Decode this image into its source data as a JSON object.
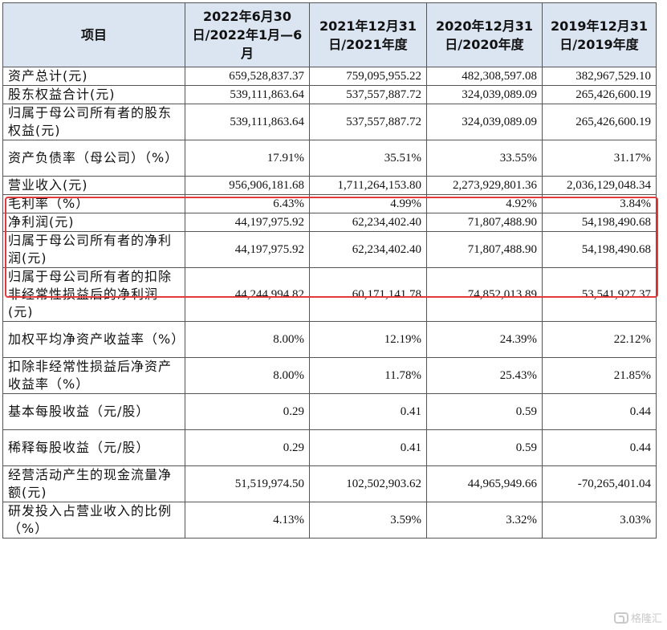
{
  "table": {
    "headers": [
      "项目",
      "2022年6月30日/2022年1月—6月",
      "2021年12月31日/2021年度",
      "2020年12月31日/2020年度",
      "2019年12月31日/2019年度"
    ],
    "rows": [
      {
        "label": "资产总计(元)",
        "values": [
          "659,528,837.37",
          "759,095,955.22",
          "482,308,597.08",
          "382,967,529.10"
        ]
      },
      {
        "label": "股东权益合计(元)",
        "values": [
          "539,111,863.64",
          "537,557,887.72",
          "324,039,089.09",
          "265,426,600.19"
        ]
      },
      {
        "label": "归属于母公司所有者的股东权益(元)",
        "values": [
          "539,111,863.64",
          "537,557,887.72",
          "324,039,089.09",
          "265,426,600.19"
        ]
      },
      {
        "label": "资产负债率（母公司）（%）",
        "values": [
          "17.91%",
          "35.51%",
          "33.55%",
          "31.17%"
        ]
      },
      {
        "label": "营业收入(元)",
        "values": [
          "956,906,181.68",
          "1,711,264,153.80",
          "2,273,929,801.36",
          "2,036,129,048.34"
        ]
      },
      {
        "label": "毛利率（%）",
        "values": [
          "6.43%",
          "4.99%",
          "4.92%",
          "3.84%"
        ]
      },
      {
        "label": "净利润(元)",
        "values": [
          "44,197,975.92",
          "62,234,402.40",
          "71,807,488.90",
          "54,198,490.68"
        ]
      },
      {
        "label": "归属于母公司所有者的净利润(元)",
        "values": [
          "44,197,975.92",
          "62,234,402.40",
          "71,807,488.90",
          "54,198,490.68"
        ]
      },
      {
        "label": "归属于母公司所有者的扣除非经常性损益后的净利润(元)",
        "values": [
          "44,244,994.82",
          "60,171,141.78",
          "74,852,013.89",
          "53,541,927.37"
        ]
      },
      {
        "label": "加权平均净资产收益率（%）",
        "values": [
          "8.00%",
          "12.19%",
          "24.39%",
          "22.12%"
        ]
      },
      {
        "label": "扣除非经常性损益后净资产收益率（%）",
        "values": [
          "8.00%",
          "11.78%",
          "25.43%",
          "21.85%"
        ]
      },
      {
        "label": "基本每股收益（元/股）",
        "values": [
          "0.29",
          "0.41",
          "0.59",
          "0.44"
        ]
      },
      {
        "label": "稀释每股收益（元/股）",
        "values": [
          "0.29",
          "0.41",
          "0.59",
          "0.44"
        ]
      },
      {
        "label": "经营活动产生的现金流量净额(元)",
        "values": [
          "51,519,974.50",
          "102,502,903.62",
          "44,965,949.66",
          "-70,265,401.04"
        ]
      },
      {
        "label": "研发投入占营业收入的比例（%）",
        "values": [
          "4.13%",
          "3.59%",
          "3.32%",
          "3.03%"
        ]
      }
    ]
  },
  "highlight": {
    "color": "#e0393e"
  },
  "watermark": {
    "text": "格隆汇"
  }
}
